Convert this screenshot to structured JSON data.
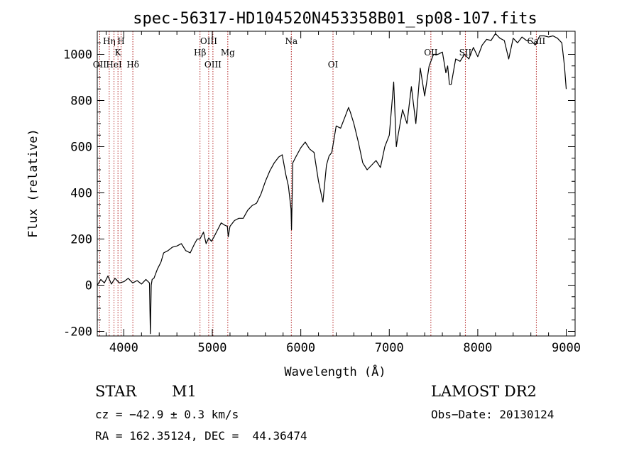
{
  "chart_data": {
    "type": "line",
    "title": "spec-56317-HD104520N453358B01_sp08-107.fits",
    "xlabel": "Wavelength (Å)",
    "ylabel": "Flux (relative)",
    "xlim": [
      3700,
      9100
    ],
    "ylim": [
      -220,
      1100
    ],
    "x_ticks": [
      4000,
      5000,
      6000,
      7000,
      8000,
      9000
    ],
    "y_ticks": [
      -200,
      0,
      200,
      400,
      600,
      800,
      1000
    ],
    "grid": false,
    "series": [
      {
        "color": "#000000",
        "x": [
          3700,
          3740,
          3780,
          3820,
          3860,
          3900,
          3950,
          4000,
          4050,
          4100,
          4150,
          4200,
          4250,
          4290,
          4300,
          4310,
          4320,
          4340,
          4380,
          4420,
          4450,
          4500,
          4550,
          4600,
          4650,
          4700,
          4750,
          4800,
          4830,
          4860,
          4900,
          4930,
          4960,
          4990,
          5020,
          5060,
          5100,
          5140,
          5170,
          5180,
          5200,
          5250,
          5300,
          5350,
          5400,
          5450,
          5500,
          5550,
          5600,
          5650,
          5700,
          5750,
          5790,
          5830,
          5860,
          5890,
          5895,
          5910,
          5950,
          6000,
          6050,
          6100,
          6150,
          6200,
          6250,
          6290,
          6320,
          6350,
          6400,
          6450,
          6500,
          6540,
          6560,
          6600,
          6650,
          6700,
          6750,
          6800,
          6850,
          6900,
          6950,
          7000,
          7050,
          7080,
          7100,
          7150,
          7200,
          7250,
          7300,
          7350,
          7400,
          7450,
          7500,
          7550,
          7600,
          7640,
          7660,
          7680,
          7700,
          7750,
          7800,
          7850,
          7900,
          7950,
          8000,
          8050,
          8100,
          8150,
          8200,
          8250,
          8300,
          8350,
          8400,
          8450,
          8500,
          8550,
          8600,
          8650,
          8700,
          8750,
          8800,
          8850,
          8900,
          8950,
          8980,
          9000
        ],
        "y": [
          0,
          25,
          10,
          40,
          5,
          30,
          10,
          15,
          30,
          10,
          20,
          5,
          25,
          10,
          -210,
          0,
          25,
          30,
          70,
          100,
          140,
          150,
          165,
          170,
          180,
          150,
          140,
          180,
          200,
          200,
          230,
          180,
          205,
          190,
          210,
          240,
          270,
          260,
          255,
          210,
          255,
          280,
          290,
          290,
          325,
          345,
          355,
          395,
          450,
          495,
          530,
          555,
          565,
          480,
          430,
          330,
          240,
          530,
          560,
          595,
          620,
          590,
          575,
          450,
          360,
          520,
          560,
          575,
          690,
          680,
          730,
          770,
          750,
          700,
          620,
          530,
          500,
          520,
          540,
          510,
          600,
          650,
          880,
          600,
          650,
          760,
          700,
          860,
          700,
          940,
          820,
          950,
          1000,
          1000,
          1010,
          920,
          950,
          870,
          870,
          980,
          970,
          1000,
          980,
          1030,
          990,
          1040,
          1065,
          1060,
          1090,
          1070,
          1060,
          980,
          1070,
          1050,
          1075,
          1060,
          1060,
          1040,
          1080,
          1080,
          1075,
          1080,
          1070,
          1050,
          950,
          850
        ]
      }
    ],
    "spectral_lines": [
      {
        "label": "OII",
        "x": 3727,
        "row": 3
      },
      {
        "label": "Hη",
        "x": 3835,
        "row": 1
      },
      {
        "label": "HeI",
        "x": 3889,
        "row": 3
      },
      {
        "label": "K",
        "x": 3934,
        "row": 2
      },
      {
        "label": "H",
        "x": 3969,
        "row": 1
      },
      {
        "label": "Hδ",
        "x": 4102,
        "row": 3
      },
      {
        "label": "Hβ",
        "x": 4861,
        "row": 2
      },
      {
        "label": "OIII",
        "x": 4959,
        "row": 1
      },
      {
        "label": "OIII",
        "x": 5007,
        "row": 3
      },
      {
        "label": "Mg",
        "x": 5175,
        "row": 2
      },
      {
        "label": "Na",
        "x": 5893,
        "row": 1
      },
      {
        "label": "OI",
        "x": 6364,
        "row": 3
      },
      {
        "label": "OII",
        "x": 7470,
        "row": 2
      },
      {
        "label": "SII",
        "x": 7860,
        "row": 2
      },
      {
        "label": "CaII",
        "x": 8662,
        "row": 1
      }
    ]
  },
  "footer": {
    "object_class": "STAR",
    "subclass": "M1",
    "cz": "cz = −42.9 ± 0.3 km/s",
    "coords": "RA = 162.35124, DEC =  44.36474",
    "survey": "LAMOST DR2",
    "obs_date": "Obs−Date: 20130124"
  }
}
